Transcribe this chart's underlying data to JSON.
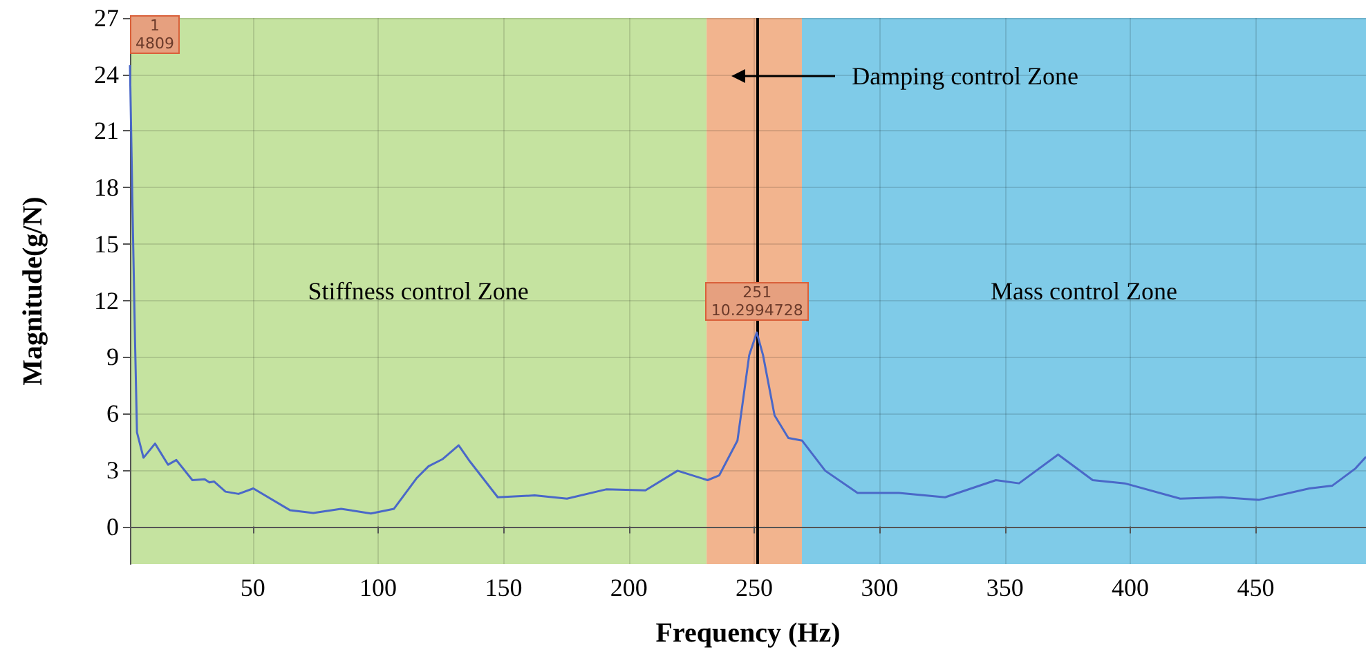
{
  "chart_data": {
    "type": "line",
    "xlabel": "Frequency (Hz)",
    "ylabel": "Magnitude(g/N)",
    "xlim": [
      1,
      494
    ],
    "xticks": [
      50,
      100,
      150,
      200,
      250,
      300,
      350,
      400,
      450
    ],
    "ylim": [
      -2,
      27
    ],
    "yticks": [
      0,
      3,
      6,
      9,
      12,
      15,
      18,
      21,
      24,
      27
    ],
    "grid": true,
    "marker": "none",
    "line_style": "solid",
    "series": [
      {
        "color": "#4a68c8",
        "x": [
          1,
          2,
          3,
          3.8,
          6.4,
          11,
          16.2,
          19.5,
          25.9,
          30.8,
          32.7,
          34.5,
          39.1,
          44.3,
          50.2,
          64.9,
          74.1,
          85.2,
          97.1,
          106.3,
          115.5,
          120.1,
          125.6,
          132.1,
          136.6,
          147.7,
          162.4,
          175.3,
          190.9,
          206.6,
          219.4,
          231.4,
          236,
          243.3,
          248,
          251,
          253.5,
          258.1,
          263.6,
          269.1,
          278.3,
          291.2,
          307.7,
          326.1,
          346.4,
          355.6,
          371.2,
          385,
          397.8,
          419.9,
          436.5,
          451.2,
          471.4,
          480.6,
          489.8,
          494
        ],
        "values": [
          24.5,
          17,
          10,
          5.0,
          3.65,
          4.4,
          3.28,
          3.53,
          2.46,
          2.51,
          2.34,
          2.39,
          1.85,
          1.73,
          2.02,
          0.86,
          0.72,
          0.94,
          0.69,
          0.94,
          2.59,
          3.2,
          3.57,
          4.31,
          3.45,
          1.55,
          1.65,
          1.48,
          1.97,
          1.92,
          2.96,
          2.46,
          2.71,
          4.56,
          9.1,
          10.2994728,
          9.1,
          5.9,
          4.7,
          4.56,
          2.96,
          1.78,
          1.78,
          1.55,
          2.46,
          2.29,
          3.82,
          2.46,
          2.29,
          1.48,
          1.55,
          1.41,
          2.02,
          2.17,
          3.08,
          3.7
        ]
      }
    ],
    "bands": [
      {
        "axis": "x",
        "from": 1,
        "to": 231,
        "label": "Stiffness control Zone",
        "color": "#c5e3a0"
      },
      {
        "axis": "x",
        "from": 231,
        "to": 269,
        "color": "#f2b48e"
      },
      {
        "axis": "x",
        "from": 269,
        "to": 494,
        "label": "Mass control Zone",
        "color": "#7fcbe8"
      }
    ],
    "ref_lines": [
      {
        "axis": "x",
        "value": 251,
        "color": "#000000"
      }
    ],
    "annotations": [
      {
        "text": "1\n4809",
        "x": 1,
        "y": 24.5
      },
      {
        "text": "251\n10.2994728",
        "x": 251,
        "y": 10.2994728
      },
      "Damping control Zone"
    ]
  }
}
